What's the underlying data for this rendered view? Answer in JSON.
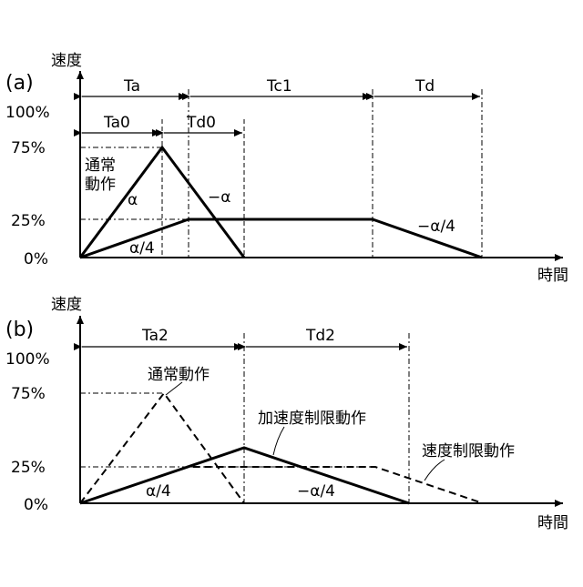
{
  "panel_a": {
    "panel_label": "(a)",
    "y_axis_label": "速度",
    "x_axis_label": "時間",
    "y_ticks": [
      "100%",
      "75%",
      "25%",
      "0%"
    ],
    "intervals": {
      "ta": "Ta",
      "tc1": "Tc1",
      "td": "Td",
      "ta0": "Ta0",
      "td0": "Td0"
    },
    "labels": {
      "normal_op_line1": "通常",
      "normal_op_line2": "動作",
      "alpha": "α",
      "minus_alpha": "−α",
      "alpha_quarter": "α/4",
      "minus_alpha_quarter": "−α/4"
    }
  },
  "panel_b": {
    "panel_label": "(b)",
    "y_axis_label": "速度",
    "x_axis_label": "時間",
    "y_ticks": [
      "100%",
      "75%",
      "25%",
      "0%"
    ],
    "intervals": {
      "ta2": "Ta2",
      "td2": "Td2"
    },
    "labels": {
      "normal_op": "通常動作",
      "accel_limit_op": "加速度制限動作",
      "speed_limit_op": "速度制限動作",
      "alpha_quarter": "α/4",
      "minus_alpha_quarter": "−α/4"
    }
  }
}
